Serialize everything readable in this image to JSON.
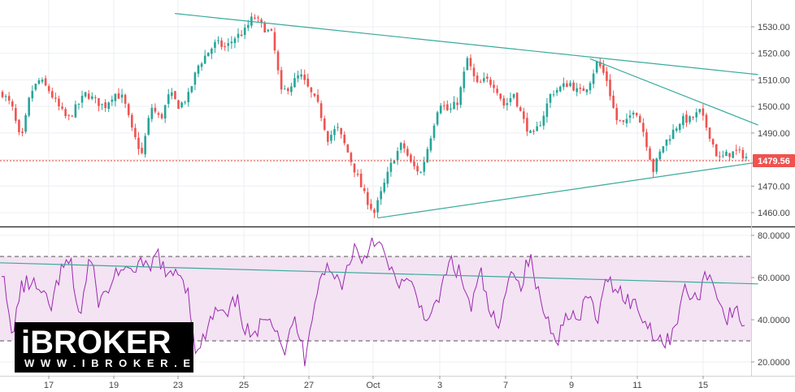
{
  "chart_data": [
    {
      "type": "candlestick",
      "title": "",
      "ylabel": "",
      "ylim": [
        1455,
        1535
      ],
      "y_ticks": [
        "1460.00",
        "1470.00",
        "1480.00",
        "1490.00",
        "1500.00",
        "1510.00",
        "1520.00",
        "1530.00"
      ],
      "x_ticks": [
        "17",
        "19",
        "23",
        "25",
        "27",
        "Oct",
        "3",
        "7",
        "9",
        "11",
        "15"
      ],
      "last_price": 1479.56,
      "last_price_label": "1479.56",
      "colors": {
        "up": "#26a69a",
        "down": "#ef5350",
        "trend": "#3aaa9a",
        "price_line": "#e53935",
        "badge": "#ef5350"
      },
      "close_path": [
        1505,
        1500,
        1486,
        1505,
        1510,
        1506,
        1500,
        1495,
        1500,
        1505,
        1502,
        1500,
        1505,
        1503,
        1490,
        1482,
        1500,
        1495,
        1505,
        1500,
        1504,
        1515,
        1520,
        1524,
        1522,
        1526,
        1528,
        1534,
        1530,
        1527,
        1505,
        1508,
        1512,
        1506,
        1500,
        1488,
        1492,
        1484,
        1475,
        1466,
        1460,
        1470,
        1480,
        1486,
        1478,
        1475,
        1488,
        1502,
        1498,
        1502,
        1518,
        1508,
        1510,
        1508,
        1500,
        1505,
        1495,
        1488,
        1495,
        1505,
        1507,
        1509,
        1505,
        1508,
        1517,
        1510,
        1495,
        1493,
        1500,
        1490,
        1476,
        1485,
        1490,
        1495,
        1495,
        1498,
        1490,
        1480,
        1482,
        1483,
        1481
      ],
      "trendlines": [
        {
          "name": "upper-resistance",
          "points": [
            [
              0.22,
              1535
            ],
            [
              0.925,
              1512
            ]
          ]
        },
        {
          "name": "short-resistance",
          "points": [
            [
              0.742,
              1518
            ],
            [
              0.925,
              1493
            ]
          ]
        },
        {
          "name": "support",
          "points": [
            [
              0.475,
              1458
            ],
            [
              0.925,
              1479
            ]
          ]
        }
      ]
    },
    {
      "type": "line",
      "title": "",
      "ylim": [
        18,
        82
      ],
      "y_ticks": [
        "20.0000",
        "40.0000",
        "60.0000",
        "80.0000"
      ],
      "band": [
        30,
        70
      ],
      "colors": {
        "line": "#9c27b0",
        "band_fill": "#f3e3f3",
        "band_border": "#555555",
        "trend": "#3aaa9a"
      },
      "values_path": [
        65,
        32,
        55,
        58,
        52,
        45,
        62,
        68,
        40,
        70,
        48,
        55,
        65,
        60,
        68,
        62,
        72,
        58,
        65,
        55,
        22,
        35,
        45,
        40,
        50,
        35,
        30,
        45,
        38,
        25,
        40,
        22,
        50,
        65,
        60,
        58,
        75,
        68,
        80,
        72,
        60,
        58,
        55,
        45,
        40,
        55,
        68,
        60,
        45,
        62,
        42,
        35,
        68,
        55,
        70,
        50,
        38,
        32,
        45,
        38,
        52,
        40,
        60,
        55,
        50,
        46,
        38,
        33,
        28,
        40,
        55,
        48,
        62,
        57,
        40,
        44,
        38
      ],
      "trendline": {
        "name": "rsi-trend",
        "points": [
          [
            0.0,
            67
          ],
          [
            0.925,
            57
          ]
        ]
      }
    }
  ],
  "brand": {
    "logo_prefix": "i",
    "logo_main": "BROKER",
    "logo_url": "W W W . I B R O K E R . E S",
    "colors": {
      "bg": "#000000",
      "text": "#ffffff",
      "accent": "#1ea7e1"
    }
  }
}
